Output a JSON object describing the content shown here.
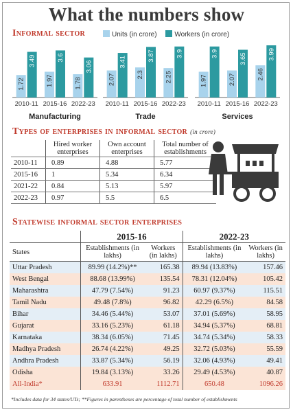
{
  "title": "What the numbers show",
  "colors": {
    "units": "#a8d3ec",
    "workers": "#2c9aa0",
    "accent": "#c0392b"
  },
  "chart_data": {
    "type": "bar",
    "title": "Informal sector",
    "unit_note": "",
    "series_names": [
      "Units (in crore)",
      "Workers (in crore)"
    ],
    "ylim": [
      0,
      4.2
    ],
    "groups": [
      {
        "name": "Manufacturing",
        "categories": [
          "2010-11",
          "2015-16",
          "2022-23"
        ],
        "units": [
          1.72,
          1.97,
          1.78
        ],
        "workers": [
          3.49,
          3.6,
          3.06
        ]
      },
      {
        "name": "Trade",
        "categories": [
          "2010-11",
          "2015-16",
          "2022-23"
        ],
        "units": [
          2.07,
          2.3,
          2.25
        ],
        "workers": [
          3.41,
          3.87,
          3.9
        ]
      },
      {
        "name": "Services",
        "categories": [
          "2010-11",
          "2015-16",
          "2022-23"
        ],
        "units": [
          1.97,
          2.07,
          2.46
        ],
        "workers": [
          3.9,
          3.65,
          3.99
        ]
      }
    ]
  },
  "enterprises": {
    "title": "Types of enterprises in informal sector",
    "unit": "(in crore)",
    "headers": [
      "",
      "Hired worker enterprises",
      "Own account enterprises",
      "Total number of establishments"
    ],
    "rows": [
      [
        "2010-11",
        "0.89",
        "4.88",
        "5.77"
      ],
      [
        "2015-16",
        "1",
        "5.34",
        "6.34"
      ],
      [
        "2021-22",
        "0.84",
        "5.13",
        "5.97"
      ],
      [
        "2022-23",
        "0.97",
        "5.5",
        "6.5"
      ]
    ]
  },
  "statewise": {
    "title": "Statewise informal sector enterprises",
    "year1": "2015-16",
    "year2": "2022-23",
    "col_states": "States",
    "col_est": "Establishments (in lakhs)",
    "col_workers": "Workers (in lakhs)",
    "rows": [
      [
        "Uttar Pradesh",
        "89.99 (14.2%)**",
        "165.38",
        "89.94 (13.83%)",
        "157.46"
      ],
      [
        "West Bengal",
        "88.68 (13.99%)",
        "135.54",
        "78.31 (12.04%)",
        "105.42"
      ],
      [
        "Maharashtra",
        "47.79 (7.54%)",
        "91.23",
        "60.97 (9.37%)",
        "115.51"
      ],
      [
        "Tamil Nadu",
        "49.48 (7.8%)",
        "96.82",
        "42.29 (6.5%)",
        "84.58"
      ],
      [
        "Bihar",
        "34.46 (5.44%)",
        "53.07",
        "37.01 (5.69%)",
        "58.95"
      ],
      [
        "Gujarat",
        "33.16 (5.23%)",
        "61.18",
        "34.94 (5.37%)",
        "68.81"
      ],
      [
        "Karnataka",
        "38.34 (6.05%)",
        "71.45",
        "34.74 (5.34%)",
        "58.33"
      ],
      [
        "Madhya Pradesh",
        "26.74 (4.22%)",
        "49.25",
        "32.72 (5.03%)",
        "55.59"
      ],
      [
        "Andhra Pradesh",
        "33.87 (5.34%)",
        "56.19",
        "32.06 (4.93%)",
        "49.41"
      ],
      [
        "Odisha",
        "19.84 (3.13%)",
        "33.26",
        "29.49 (4.53%)",
        "40.87"
      ]
    ],
    "total": [
      "All-India*",
      "633.91",
      "1112.71",
      "650.48",
      "1096.26"
    ]
  },
  "footnote": "*Includes data for 34 states/UTs; **Figures in parentheses are percentage of total number of establishments"
}
